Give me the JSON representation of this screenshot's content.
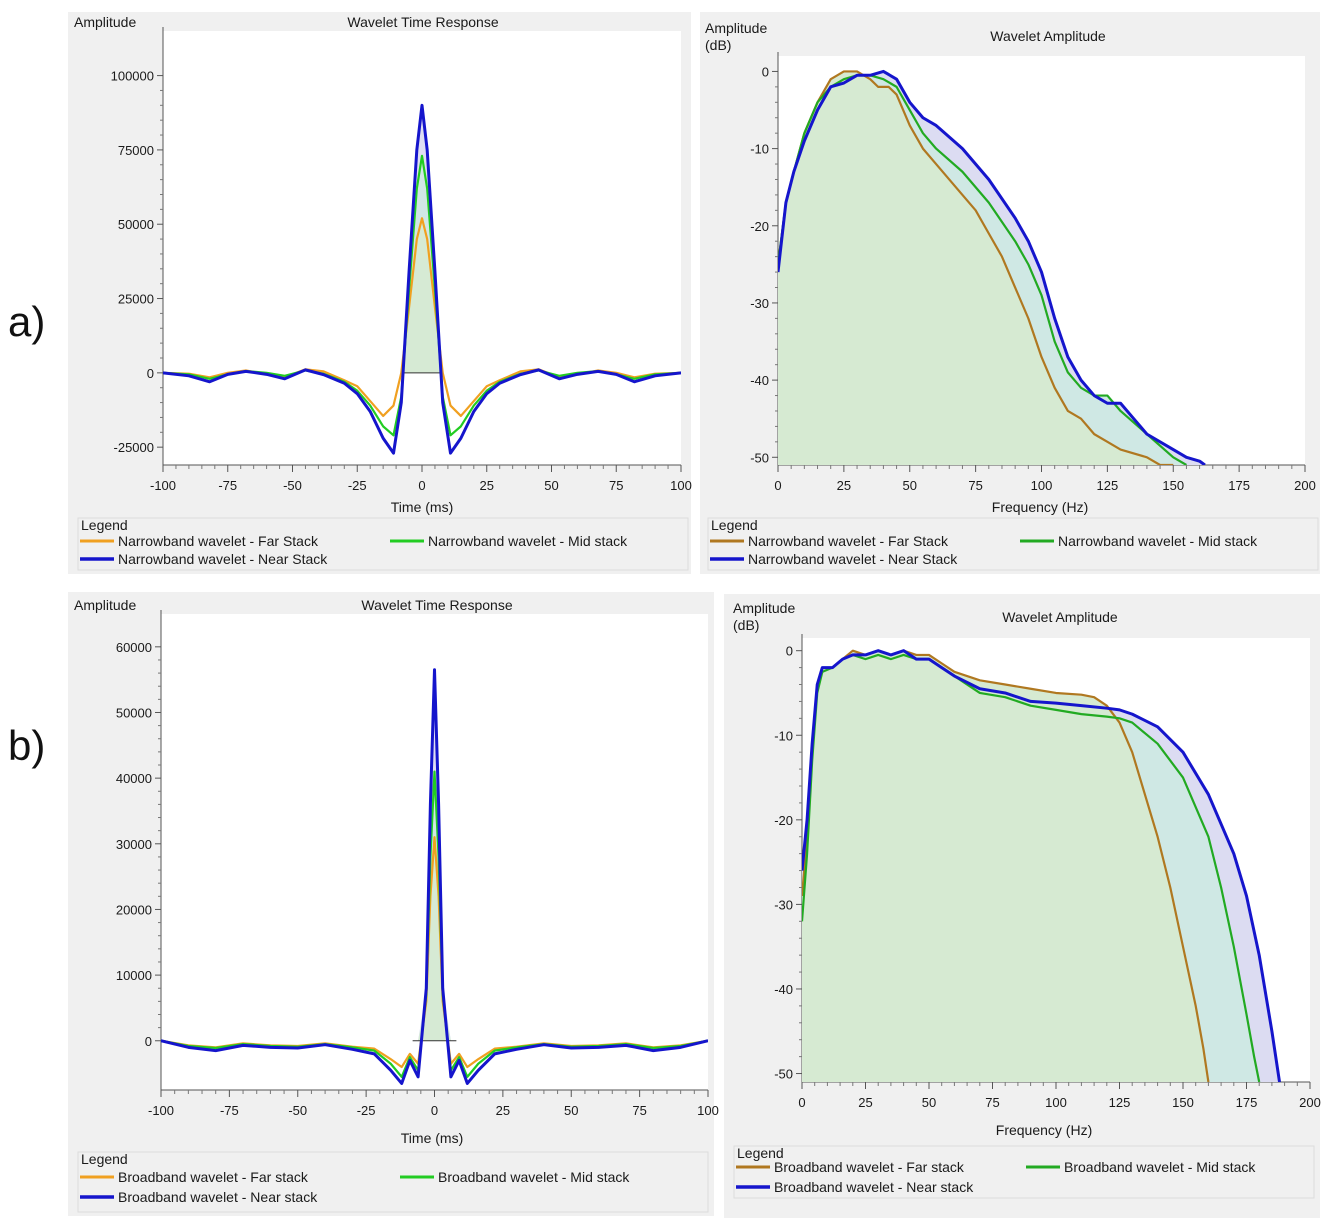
{
  "panels": [
    {
      "label": "a)"
    },
    {
      "label": "b)"
    }
  ],
  "chart_data": [
    {
      "type": "line",
      "panel": "a)",
      "title": "Wavelet Time Response",
      "ylabel": "Amplitude",
      "xlabel": "Time (ms)",
      "xlim": [
        -100,
        100
      ],
      "ylim": [
        -31000,
        115000
      ],
      "xticks": [
        -100,
        -75,
        -50,
        -25,
        0,
        25,
        50,
        75,
        100
      ],
      "yticks": [
        -25000,
        0,
        25000,
        50000,
        75000,
        100000
      ],
      "legend_title": "Legend",
      "series": [
        {
          "name": "Narrowband wavelet - Far Stack",
          "color": "#f0a020",
          "x": [
            -100,
            -90,
            -82,
            -75,
            -68,
            -60,
            -53,
            -45,
            -38,
            -30,
            -25,
            -20,
            -15,
            -11,
            -8,
            -5,
            -2,
            0,
            2,
            5,
            8,
            11,
            15,
            20,
            25,
            30,
            38,
            45,
            53,
            60,
            68,
            75,
            82,
            90,
            100
          ],
          "y": [
            0,
            -300,
            -1500,
            0,
            800,
            -500,
            -1500,
            1200,
            500,
            -2500,
            -4500,
            -9500,
            -14500,
            -11000,
            0,
            22000,
            45000,
            52000,
            45000,
            22000,
            0,
            -11000,
            -14500,
            -9500,
            -4500,
            -2500,
            500,
            1200,
            -1500,
            -500,
            800,
            0,
            -1500,
            -300,
            0
          ]
        },
        {
          "name": "Narrowband wavelet - Mid stack",
          "color": "#22cc22",
          "x": [
            -100,
            -90,
            -82,
            -75,
            -68,
            -60,
            -53,
            -45,
            -38,
            -30,
            -25,
            -20,
            -15,
            -11,
            -8,
            -5,
            -2,
            0,
            2,
            5,
            8,
            11,
            15,
            20,
            25,
            30,
            38,
            45,
            53,
            60,
            68,
            75,
            82,
            90,
            100
          ],
          "y": [
            0,
            -500,
            -2000,
            -500,
            600,
            0,
            -1000,
            800,
            -300,
            -3000,
            -6000,
            -11000,
            -18000,
            -21000,
            -8000,
            28000,
            62000,
            73000,
            62000,
            28000,
            -8000,
            -21000,
            -18000,
            -11000,
            -6000,
            -3000,
            -300,
            800,
            -1000,
            0,
            600,
            -500,
            -2000,
            -500,
            0
          ]
        },
        {
          "name": "Narrowband wavelet - Near Stack",
          "color": "#1515cc",
          "x": [
            -100,
            -90,
            -82,
            -75,
            -68,
            -60,
            -53,
            -45,
            -38,
            -30,
            -25,
            -20,
            -15,
            -11,
            -8,
            -5,
            -2,
            0,
            2,
            5,
            8,
            11,
            15,
            20,
            25,
            30,
            38,
            45,
            53,
            60,
            68,
            75,
            82,
            90,
            100
          ],
          "y": [
            0,
            -1000,
            -3000,
            -500,
            500,
            -500,
            -2000,
            1000,
            -600,
            -3500,
            -7000,
            -13000,
            -22000,
            -27000,
            -10000,
            34000,
            75000,
            90000,
            75000,
            34000,
            -10000,
            -27000,
            -22000,
            -13000,
            -7000,
            -3500,
            -600,
            1000,
            -2000,
            -500,
            500,
            -500,
            -3000,
            -1000,
            0
          ]
        }
      ]
    },
    {
      "type": "area",
      "panel": "a)",
      "title": "Wavelet Amplitude",
      "ylabel": "Amplitude\n(dB)",
      "xlabel": "Frequency (Hz)",
      "xlim": [
        0,
        200
      ],
      "ylim": [
        -51,
        2
      ],
      "xticks": [
        0,
        25,
        50,
        75,
        100,
        125,
        150,
        175,
        200
      ],
      "yticks": [
        0,
        -10,
        -20,
        -30,
        -40,
        -50
      ],
      "legend_title": "Legend",
      "series": [
        {
          "name": "Narrowband wavelet - Far Stack",
          "color": "#b07820",
          "x": [
            0,
            3,
            6,
            10,
            15,
            20,
            25,
            30,
            35,
            38,
            42,
            45,
            50,
            55,
            60,
            70,
            75,
            80,
            85,
            90,
            95,
            100,
            105,
            110,
            115,
            120,
            125,
            130,
            140,
            145,
            150
          ],
          "y": [
            -25,
            -17,
            -13,
            -8,
            -4,
            -1,
            0,
            0,
            -1,
            -2,
            -2,
            -3,
            -7,
            -10,
            -12,
            -16,
            -18,
            -21,
            -24,
            -28,
            -32,
            -37,
            -41,
            -44,
            -45,
            -47,
            -48,
            -49,
            -50,
            -51,
            -51
          ]
        },
        {
          "name": "Narrowband wavelet - Mid stack",
          "color": "#22aa22",
          "x": [
            0,
            3,
            6,
            10,
            15,
            20,
            25,
            30,
            35,
            40,
            45,
            50,
            55,
            60,
            70,
            80,
            90,
            95,
            100,
            105,
            110,
            115,
            120,
            125,
            130,
            140,
            150,
            155
          ],
          "y": [
            -25,
            -17,
            -13,
            -8,
            -4,
            -2,
            -1,
            -0.5,
            -0.5,
            -1,
            -2,
            -5,
            -8,
            -10,
            -13,
            -17,
            -22,
            -25,
            -29,
            -35,
            -39,
            -41,
            -42,
            -42,
            -44,
            -47,
            -50,
            -51
          ]
        },
        {
          "name": "Narrowband wavelet - Near Stack",
          "color": "#1515cc",
          "x": [
            0,
            3,
            6,
            10,
            15,
            20,
            25,
            30,
            35,
            40,
            45,
            50,
            55,
            60,
            70,
            80,
            90,
            95,
            100,
            105,
            110,
            115,
            120,
            125,
            130,
            135,
            140,
            150,
            155,
            160,
            162
          ],
          "y": [
            -26,
            -17,
            -13,
            -9,
            -5,
            -2,
            -1.5,
            -0.5,
            -0.5,
            0,
            -1,
            -4,
            -6,
            -7,
            -10,
            -14,
            -19,
            -22,
            -26,
            -32,
            -37,
            -40,
            -42,
            -43,
            -43,
            -45,
            -47,
            -49,
            -50,
            -50.5,
            -51
          ]
        }
      ]
    },
    {
      "type": "line",
      "panel": "b)",
      "title": "Wavelet Time Response",
      "ylabel": "Amplitude",
      "xlabel": "Time (ms)",
      "xlim": [
        -100,
        100
      ],
      "ylim": [
        -7500,
        65000
      ],
      "xticks": [
        -100,
        -75,
        -50,
        -25,
        0,
        25,
        50,
        75,
        100
      ],
      "yticks": [
        0,
        10000,
        20000,
        30000,
        40000,
        50000,
        60000
      ],
      "legend_title": "Legend",
      "series": [
        {
          "name": "Broadband wavelet - Far stack",
          "color": "#f0a020",
          "x": [
            -100,
            -90,
            -80,
            -70,
            -60,
            -50,
            -40,
            -30,
            -22,
            -16,
            -12,
            -9,
            -6,
            -3,
            -1.5,
            0,
            1.5,
            3,
            6,
            9,
            12,
            16,
            22,
            30,
            40,
            50,
            60,
            70,
            80,
            90,
            100
          ],
          "y": [
            0,
            -700,
            -1000,
            -400,
            -700,
            -800,
            -400,
            -900,
            -1200,
            -2800,
            -4000,
            -2000,
            -3500,
            6000,
            22000,
            31000,
            22000,
            6000,
            -3500,
            -2000,
            -4000,
            -2800,
            -1200,
            -900,
            -400,
            -800,
            -700,
            -400,
            -1000,
            -700,
            0
          ]
        },
        {
          "name": "Broadband wavelet - Mid stack",
          "color": "#22cc22",
          "x": [
            -100,
            -90,
            -80,
            -70,
            -60,
            -50,
            -40,
            -30,
            -22,
            -16,
            -12,
            -9,
            -6,
            -3,
            -1.5,
            0,
            1.5,
            3,
            6,
            9,
            12,
            16,
            22,
            30,
            40,
            50,
            60,
            70,
            80,
            90,
            100
          ],
          "y": [
            0,
            -800,
            -1100,
            -500,
            -800,
            -900,
            -500,
            -1000,
            -1500,
            -3500,
            -5500,
            -2500,
            -4500,
            7000,
            28000,
            41000,
            28000,
            7000,
            -4500,
            -2500,
            -5500,
            -3500,
            -1500,
            -1000,
            -500,
            -900,
            -800,
            -500,
            -1100,
            -800,
            0
          ]
        },
        {
          "name": "Broadband wavelet - Near stack",
          "color": "#1515cc",
          "x": [
            -100,
            -90,
            -80,
            -70,
            -60,
            -50,
            -40,
            -30,
            -22,
            -16,
            -12,
            -9,
            -6,
            -3,
            -1.5,
            0,
            1.5,
            3,
            6,
            9,
            12,
            16,
            22,
            30,
            40,
            50,
            60,
            70,
            80,
            90,
            100
          ],
          "y": [
            0,
            -1000,
            -1500,
            -700,
            -1000,
            -1100,
            -600,
            -1300,
            -2000,
            -4500,
            -6500,
            -3000,
            -5500,
            8000,
            36000,
            56500,
            36000,
            8000,
            -5500,
            -3000,
            -6500,
            -4500,
            -2000,
            -1300,
            -600,
            -1100,
            -1000,
            -700,
            -1500,
            -1000,
            0
          ]
        }
      ]
    },
    {
      "type": "area",
      "panel": "b)",
      "title": "Wavelet Amplitude",
      "ylabel": "Amplitude\n(dB)",
      "xlabel": "Frequency (Hz)",
      "xlim": [
        0,
        200
      ],
      "ylim": [
        -51,
        1.5
      ],
      "xticks": [
        0,
        25,
        50,
        75,
        100,
        125,
        150,
        175,
        200
      ],
      "yticks": [
        0,
        -10,
        -20,
        -30,
        -40,
        -50
      ],
      "legend_title": "Legend",
      "series": [
        {
          "name": "Broadband wavelet - Far stack",
          "color": "#b07820",
          "x": [
            0,
            2,
            4,
            6,
            8,
            12,
            16,
            20,
            25,
            30,
            35,
            40,
            45,
            50,
            55,
            60,
            65,
            70,
            80,
            90,
            100,
            110,
            115,
            120,
            125,
            130,
            135,
            140,
            145,
            150,
            155,
            158,
            160
          ],
          "y": [
            -29,
            -22,
            -12,
            -4,
            -2,
            -2,
            -1,
            0,
            -0.5,
            0,
            -0.5,
            0,
            -0.5,
            -0.5,
            -1.5,
            -2.5,
            -3,
            -3.5,
            -4,
            -4.5,
            -5,
            -5.2,
            -5.5,
            -6.5,
            -8.5,
            -12,
            -17,
            -22,
            -28,
            -35,
            -42,
            -47,
            -51
          ]
        },
        {
          "name": "Broadband wavelet - Mid stack",
          "color": "#22aa22",
          "x": [
            0,
            2,
            4,
            6,
            8,
            12,
            16,
            20,
            25,
            30,
            35,
            40,
            45,
            50,
            55,
            60,
            70,
            80,
            90,
            100,
            110,
            120,
            125,
            130,
            140,
            150,
            160,
            165,
            170,
            175,
            178,
            180
          ],
          "y": [
            -32,
            -24,
            -13,
            -5,
            -2.5,
            -2,
            -1,
            -0.5,
            -1,
            -0.5,
            -1,
            -0.5,
            -1,
            -1,
            -2,
            -3,
            -5,
            -5.5,
            -6.5,
            -7,
            -7.5,
            -7.8,
            -8,
            -8.5,
            -11,
            -15,
            -22,
            -28,
            -35,
            -43,
            -48,
            -51
          ]
        },
        {
          "name": "Broadband wavelet - Near stack",
          "color": "#1515cc",
          "x": [
            0,
            2,
            4,
            6,
            8,
            12,
            16,
            20,
            25,
            30,
            35,
            40,
            45,
            50,
            55,
            60,
            70,
            80,
            90,
            100,
            110,
            120,
            125,
            130,
            140,
            150,
            160,
            170,
            175,
            180,
            185,
            188
          ],
          "y": [
            -26,
            -20,
            -11,
            -4,
            -2,
            -2,
            -1,
            -0.5,
            -0.5,
            0,
            -0.5,
            0,
            -1,
            -1,
            -2,
            -3,
            -4.5,
            -5,
            -6,
            -6.2,
            -6.5,
            -6.8,
            -7,
            -7.5,
            -9,
            -12,
            -17,
            -24,
            -29,
            -36,
            -45,
            -51
          ]
        }
      ]
    }
  ]
}
